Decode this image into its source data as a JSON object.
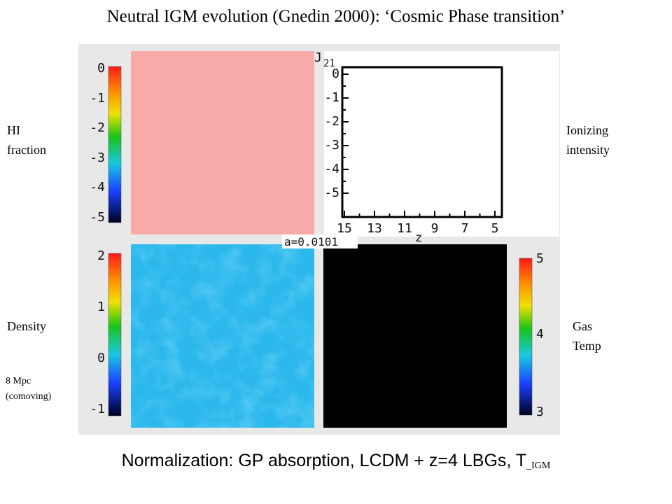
{
  "title": "Neutral IGM  evolution (Gnedin 2000): ‘Cosmic Phase transition’",
  "footer": {
    "main": "Normalization: GP absorption,  LCDM + z=4 LBGs,  T",
    "subscript": "_IGM"
  },
  "labels": {
    "hi_line1": "HI",
    "hi_line2": "fraction",
    "ion_line1": "Ionizing",
    "ion_line2": "intensity",
    "density": "Density",
    "scale_line1": "8 Mpc",
    "scale_line2": "(comoving)",
    "gas_line1": "Gas",
    "gas_line2": "Temp",
    "scale_factor": "a=0.0101",
    "j21_label": "J",
    "j21_sub": "21",
    "z_axis_label": "z"
  },
  "colorbars": {
    "hi": {
      "ticks": [
        "0",
        "-1",
        "-2",
        "-3",
        "-4",
        "-5"
      ]
    },
    "density": {
      "ticks": [
        "2",
        "1",
        "0",
        "-1"
      ]
    },
    "temp": {
      "ticks": [
        "5",
        "4",
        "3"
      ]
    }
  },
  "chart_data": {
    "type": "line",
    "xlabel": "z",
    "ylabel": "J21",
    "x_ticks": [
      "15",
      "13",
      "11",
      "9",
      "7",
      "5"
    ],
    "y_ticks": [
      "0",
      "-1",
      "-2",
      "-3",
      "-4",
      "-5"
    ],
    "series": []
  },
  "colors": {
    "hi_panel": "#f8aaa9",
    "density_panel": "#2cb8ec",
    "temp_panel": "#000000",
    "panel_background": "#e8e8e8"
  }
}
